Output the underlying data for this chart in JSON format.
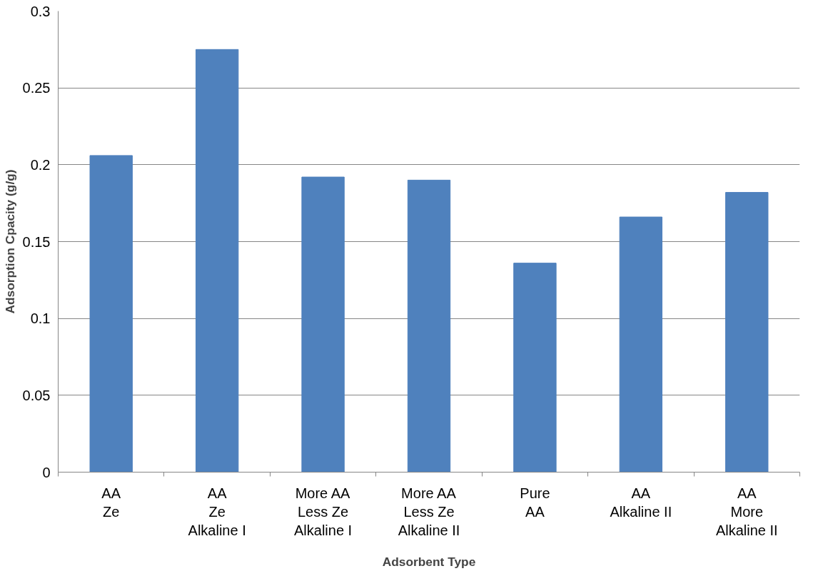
{
  "chart_data": {
    "type": "bar",
    "xlabel": "Adsorbent Type",
    "ylabel": "Adsorption Cpacity (g/g)",
    "categories": [
      "AA\nZe",
      "AA\nZe\nAlkaline I",
      "More AA\nLess Ze\nAlkaline I",
      "More AA\nLess Ze\nAlkaline II",
      "Pure\nAA",
      "AA\nAlkaline II",
      "AA\nMore\nAlkaline II"
    ],
    "values": [
      0.206,
      0.275,
      0.192,
      0.19,
      0.136,
      0.166,
      0.182
    ],
    "color": "#4f81bd",
    "ylim": [
      0,
      0.3
    ],
    "yticks": [
      0,
      0.05,
      0.1,
      0.15,
      0.2,
      0.25,
      0.3
    ],
    "grid": "y"
  }
}
